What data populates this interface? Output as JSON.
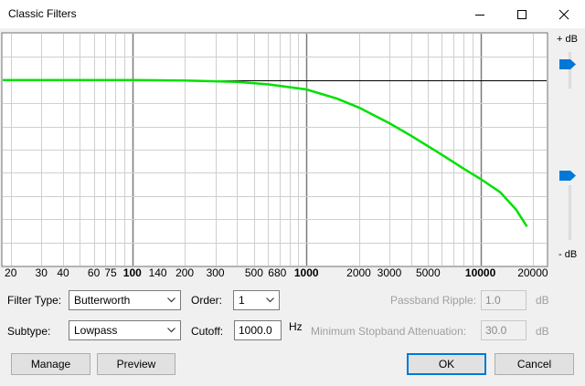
{
  "window": {
    "title": "Classic Filters"
  },
  "db_labels": {
    "top": "+ dB",
    "bottom": "- dB"
  },
  "chart_data": {
    "type": "line",
    "x_scale": "log",
    "xlim": [
      18,
      24000
    ],
    "x_tick_labels": [
      {
        "x": 20,
        "label": "20",
        "bold": false
      },
      {
        "x": 30,
        "label": "30",
        "bold": false
      },
      {
        "x": 40,
        "label": "40",
        "bold": false
      },
      {
        "x": 60,
        "label": "60",
        "bold": false
      },
      {
        "x": 75,
        "label": "75",
        "bold": false
      },
      {
        "x": 100,
        "label": "100",
        "bold": true
      },
      {
        "x": 140,
        "label": "140",
        "bold": false
      },
      {
        "x": 200,
        "label": "200",
        "bold": false
      },
      {
        "x": 300,
        "label": "300",
        "bold": false
      },
      {
        "x": 500,
        "label": "500",
        "bold": false
      },
      {
        "x": 680,
        "label": "680",
        "bold": false
      },
      {
        "x": 1000,
        "label": "1000",
        "bold": true
      },
      {
        "x": 2000,
        "label": "2000",
        "bold": false
      },
      {
        "x": 3000,
        "label": "3000",
        "bold": false
      },
      {
        "x": 5000,
        "label": "5000",
        "bold": false
      },
      {
        "x": 10000,
        "label": "10000",
        "bold": true
      },
      {
        "x": 20000,
        "label": "20000",
        "bold": false
      }
    ],
    "ylim": [
      -40,
      10
    ],
    "grid": true,
    "zero_line_db": 0,
    "series": [
      {
        "color": "#00e000",
        "x": [
          18,
          100,
          200,
          400,
          600,
          1000,
          1500,
          2000,
          3000,
          4000,
          6000,
          8000,
          10000,
          13000,
          16000,
          18500
        ],
        "y": [
          0,
          0,
          -0.1,
          -0.4,
          -0.9,
          -2.0,
          -4.0,
          -5.9,
          -9.3,
          -12.0,
          -16.1,
          -19.1,
          -21.3,
          -24.2,
          -27.9,
          -31.6
        ]
      }
    ]
  },
  "controls": {
    "filter_type_label": "Filter Type:",
    "filter_type_value": "Butterworth",
    "order_label": "Order:",
    "order_value": "1",
    "passband_ripple_label": "Passband Ripple:",
    "passband_ripple_value": "1.0",
    "passband_ripple_unit": "dB",
    "subtype_label": "Subtype:",
    "subtype_value": "Lowpass",
    "cutoff_label": "Cutoff:",
    "cutoff_value": "1000.0",
    "cutoff_unit": "Hz",
    "stopband_label": "Minimum Stopband Attenuation:",
    "stopband_value": "30.0",
    "stopband_unit": "dB"
  },
  "buttons": {
    "manage": "Manage",
    "preview": "Preview",
    "ok": "OK",
    "cancel": "Cancel"
  }
}
